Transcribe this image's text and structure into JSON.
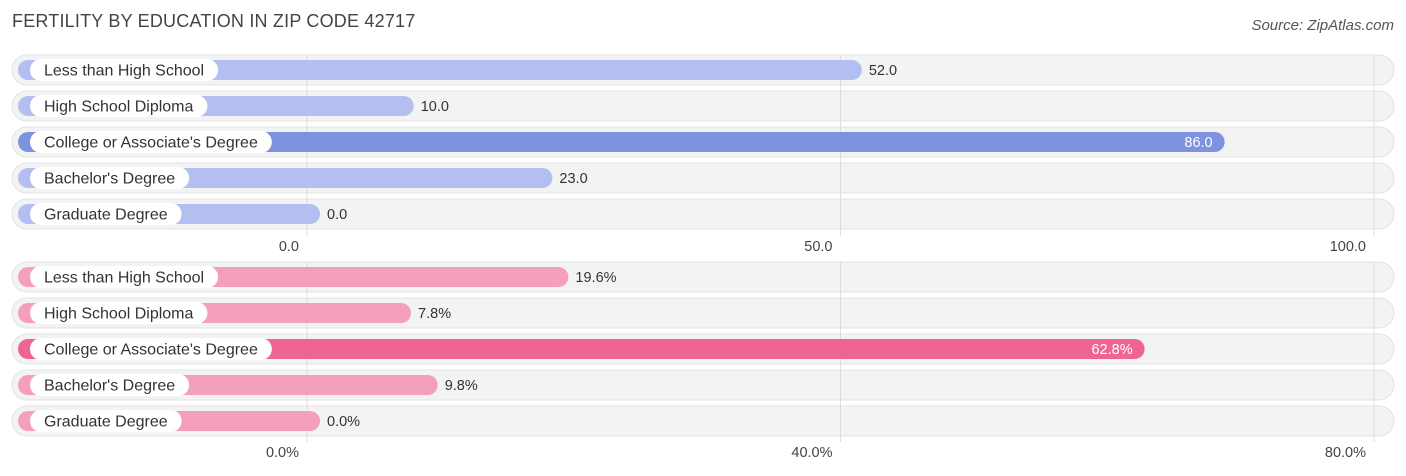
{
  "title": "FERTILITY BY EDUCATION IN ZIP CODE 42717",
  "source": "Source: ZipAtlas.com",
  "chart_data": [
    {
      "type": "bar",
      "orientation": "horizontal",
      "categories": [
        "Less than High School",
        "High School Diploma",
        "College or Associate's Degree",
        "Bachelor's Degree",
        "Graduate Degree"
      ],
      "values": [
        52.0,
        10.0,
        86.0,
        23.0,
        0.0
      ],
      "value_labels": [
        "52.0",
        "10.0",
        "86.0",
        "23.0",
        "0.0"
      ],
      "ticks": [
        0,
        50,
        100
      ],
      "tick_labels": [
        "0.0",
        "50.0",
        "100.0"
      ],
      "xlim": [
        0,
        100
      ],
      "colors": {
        "normal": "#b3bff0",
        "highlight": "#7d93de"
      },
      "highlight_index": 2,
      "grid": true
    },
    {
      "type": "bar",
      "orientation": "horizontal",
      "categories": [
        "Less than High School",
        "High School Diploma",
        "College or Associate's Degree",
        "Bachelor's Degree",
        "Graduate Degree"
      ],
      "values": [
        19.6,
        7.8,
        62.8,
        9.8,
        0.0
      ],
      "value_labels": [
        "19.6%",
        "7.8%",
        "62.8%",
        "9.8%",
        "0.0%"
      ],
      "ticks": [
        0,
        40,
        80
      ],
      "tick_labels": [
        "0.0%",
        "40.0%",
        "80.0%"
      ],
      "xlim": [
        0,
        80
      ],
      "colors": {
        "normal": "#f4a0bb",
        "highlight": "#ef6591"
      },
      "highlight_index": 2,
      "grid": true
    }
  ]
}
